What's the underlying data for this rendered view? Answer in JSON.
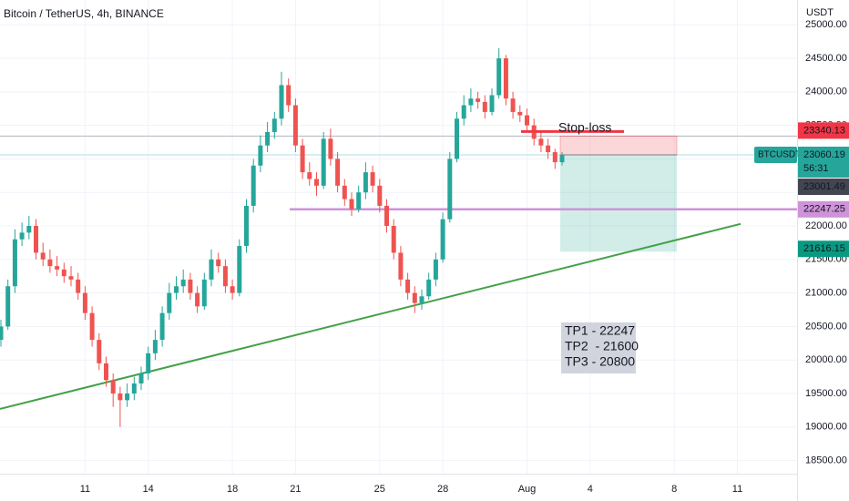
{
  "chart_data": {
    "type": "candlestick",
    "title": "Bitcoin / TetherUS, 4h, BINANCE",
    "unit": "USDT",
    "symbol": "BTCUSDT",
    "countdown": "56:31",
    "up_color": "#26a69a",
    "down_color": "#ef5350",
    "categories": [
      null,
      null,
      null,
      null,
      null,
      null,
      null,
      null,
      null,
      null,
      null,
      null,
      "11",
      null,
      null,
      null,
      null,
      null,
      null,
      null,
      null,
      "14",
      null,
      null,
      null,
      null,
      null,
      null,
      null,
      null,
      null,
      null,
      null,
      "18",
      null,
      null,
      null,
      null,
      null,
      null,
      null,
      null,
      "21",
      null,
      null,
      null,
      null,
      null,
      null,
      null,
      null,
      null,
      null,
      null,
      "25",
      null,
      null,
      null,
      null,
      null,
      null,
      null,
      null,
      "28",
      null,
      null,
      null,
      null,
      null,
      null,
      null,
      null,
      null,
      null,
      null,
      "Aug",
      null,
      null,
      null,
      null,
      null,
      null,
      null,
      null,
      "4",
      null,
      null,
      null,
      null,
      null,
      null,
      null,
      null,
      null,
      null,
      null,
      "8",
      null,
      null,
      null,
      null,
      null,
      null,
      null,
      null,
      "11",
      null,
      null,
      null,
      null,
      null,
      null
    ],
    "open": [
      20300,
      20500,
      21100,
      21800,
      21900,
      22000,
      21600,
      21500,
      21400,
      21350,
      21250,
      21200,
      21000,
      20700,
      20300,
      19950,
      19700,
      19500,
      19400,
      19500,
      19650,
      19800,
      20100,
      20300,
      20700,
      21000,
      21100,
      21200,
      21000,
      20800,
      21200,
      21500,
      21400,
      21100,
      21000,
      21700,
      22300,
      22900,
      23200,
      23400,
      23600,
      24100,
      23800,
      23200,
      22800,
      22700,
      22600,
      23300,
      23000,
      22600,
      22400,
      22250,
      22500,
      22800,
      22600,
      22300,
      22000,
      21600,
      21200,
      21000,
      20850,
      20950,
      21200,
      21500,
      22100,
      23000,
      23600,
      23800,
      23900,
      23850,
      23700,
      23950,
      24500,
      23900,
      23700,
      23650,
      23500,
      23300,
      23200,
      23100,
      22950,
      null,
      null,
      null,
      null,
      null,
      null,
      null,
      null,
      null,
      null,
      null,
      null,
      null,
      null,
      null,
      null,
      null,
      null,
      null,
      null,
      null,
      null,
      null,
      null,
      null,
      null,
      null,
      null,
      null,
      null,
      null
    ],
    "high": [
      20600,
      21200,
      21950,
      22050,
      22150,
      22100,
      21750,
      21650,
      21550,
      21450,
      21400,
      21300,
      21100,
      20800,
      20400,
      20050,
      19800,
      19600,
      19650,
      19750,
      19900,
      20200,
      20450,
      20800,
      21150,
      21250,
      21350,
      21300,
      21100,
      21300,
      21650,
      21600,
      21500,
      21200,
      21800,
      22400,
      23000,
      23350,
      23550,
      23700,
      24300,
      24200,
      23900,
      23300,
      22950,
      22800,
      23400,
      23450,
      23100,
      22700,
      22500,
      22600,
      22950,
      22900,
      22700,
      22400,
      22100,
      21700,
      21300,
      21100,
      21050,
      21300,
      21600,
      22200,
      23100,
      23700,
      23950,
      24050,
      24000,
      23950,
      24050,
      24650,
      24550,
      24000,
      23800,
      23750,
      23600,
      23400,
      23300,
      23150,
      23100,
      null,
      null,
      null,
      null,
      null,
      null,
      null,
      null,
      null,
      null,
      null,
      null,
      null,
      null,
      null,
      null,
      null,
      null,
      null,
      null,
      null,
      null,
      null,
      null,
      null,
      null,
      null,
      null,
      null,
      null,
      null
    ],
    "low": [
      20200,
      20450,
      21000,
      21700,
      21800,
      21500,
      21400,
      21300,
      21250,
      21150,
      21100,
      20900,
      20600,
      20200,
      19850,
      19600,
      19300,
      19000,
      19300,
      19400,
      19550,
      19700,
      20000,
      20200,
      20600,
      20900,
      21000,
      20900,
      20700,
      20750,
      21100,
      21300,
      21000,
      20900,
      20950,
      21600,
      22200,
      22800,
      23100,
      23300,
      23500,
      23700,
      23100,
      22700,
      22600,
      22450,
      22550,
      22900,
      22500,
      22300,
      22150,
      22200,
      22400,
      22500,
      22200,
      21900,
      21500,
      21100,
      20900,
      20700,
      20750,
      20900,
      21100,
      21450,
      22050,
      22950,
      23500,
      23700,
      23750,
      23600,
      23650,
      23900,
      23800,
      23600,
      23550,
      23400,
      23200,
      23100,
      23000,
      22850,
      22900,
      null,
      null,
      null,
      null,
      null,
      null,
      null,
      null,
      null,
      null,
      null,
      null,
      null,
      null,
      null,
      null,
      null,
      null,
      null,
      null,
      null,
      null,
      null,
      null,
      null,
      null,
      null,
      null,
      null,
      null,
      null
    ],
    "close": [
      20500,
      21100,
      21800,
      21900,
      22000,
      21600,
      21500,
      21400,
      21350,
      21250,
      21200,
      21000,
      20700,
      20300,
      19950,
      19700,
      19500,
      19400,
      19500,
      19650,
      19800,
      20100,
      20300,
      20700,
      21000,
      21100,
      21200,
      21000,
      20800,
      21200,
      21500,
      21400,
      21100,
      21000,
      21700,
      22300,
      22900,
      23200,
      23400,
      23600,
      24100,
      23800,
      23200,
      22800,
      22700,
      22600,
      23300,
      23000,
      22600,
      22400,
      22250,
      22500,
      22800,
      22600,
      22300,
      22000,
      21600,
      21200,
      21000,
      20850,
      20950,
      21200,
      21500,
      22100,
      23000,
      23600,
      23800,
      23900,
      23850,
      23700,
      23950,
      24500,
      23900,
      23700,
      23650,
      23500,
      23300,
      23200,
      23100,
      22950,
      23060,
      null,
      null,
      null,
      null,
      null,
      null,
      null,
      null,
      null,
      null,
      null,
      null,
      null,
      null,
      null,
      null,
      null,
      null,
      null,
      null,
      null,
      null,
      null,
      null,
      null,
      null,
      null,
      null,
      null,
      null,
      null
    ],
    "ylim": [
      18304,
      25370
    ],
    "yticks": [
      {
        "value": 18500,
        "label": "18500.00"
      },
      {
        "value": 19000,
        "label": "19000.00"
      },
      {
        "value": 19500,
        "label": "19500.00"
      },
      {
        "value": 20000,
        "label": "20000.00"
      },
      {
        "value": 20500,
        "label": "20500.00"
      },
      {
        "value": 21000,
        "label": "21000.00"
      },
      {
        "value": 21500,
        "label": "21500.00"
      },
      {
        "value": 22000,
        "label": "22000.00"
      },
      {
        "value": 22500,
        "label": "22500.00"
      },
      {
        "value": 23000,
        "label": "23000.00"
      },
      {
        "value": 23500,
        "label": "23500.00"
      },
      {
        "value": 24000,
        "label": "24000.00"
      },
      {
        "value": 24500,
        "label": "24500.00"
      },
      {
        "value": 25000,
        "label": "25000.00"
      }
    ],
    "grid": true,
    "current_price": 23060.19,
    "prev_price": 23001.49,
    "stop_loss": 23340.13,
    "support": 22247.25,
    "target": 21616.15,
    "stop_text": "Stop-loss",
    "trendline": {
      "start": 19270,
      "end": 22030
    },
    "notes": [
      "TP1 - 22247",
      "TP2  - 21600",
      "TP3 - 20800"
    ]
  }
}
